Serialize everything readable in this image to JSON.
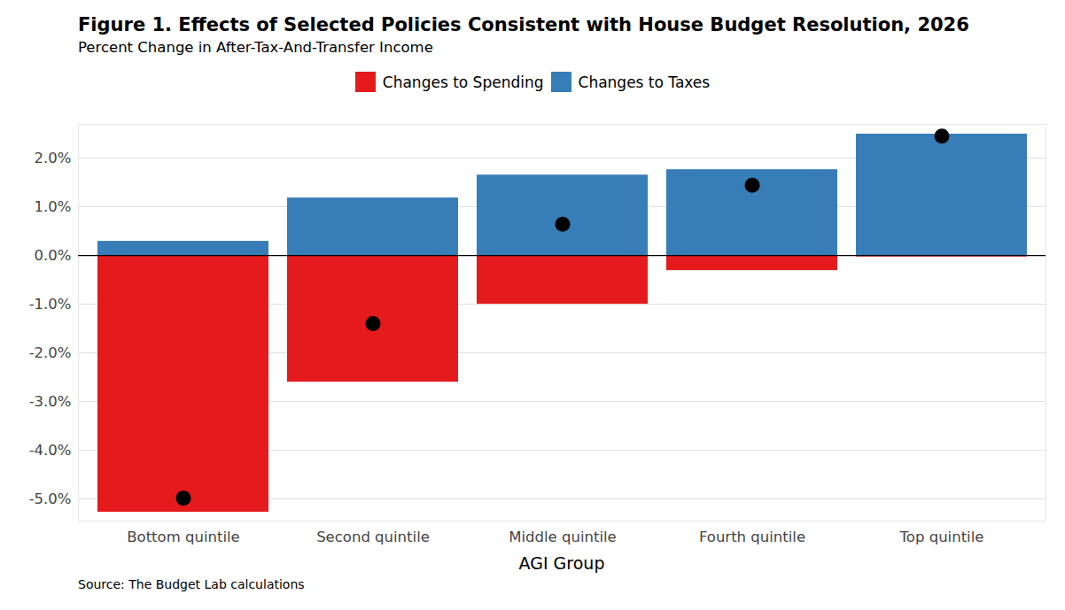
{
  "chart_data": {
    "type": "bar",
    "title": "Figure 1. Effects of Selected Policies Consistent with House Budget Resolution, 2026",
    "subtitle": "Percent Change in After-Tax-And-Transfer Income",
    "x_label": "AGI Group",
    "caption": "Source: The Budget Lab calculations",
    "categories": [
      "Bottom quintile",
      "Second quintile",
      "Middle quintile",
      "Fourth quintile",
      "Top quintile"
    ],
    "series": [
      {
        "name": "Changes to Spending",
        "color": "#e41a1c",
        "values": [
          -5.27,
          -2.6,
          -1.0,
          -0.31,
          -0.03
        ]
      },
      {
        "name": "Changes to Taxes",
        "color": "#377eb8",
        "values": [
          0.29,
          1.18,
          1.65,
          1.76,
          2.49
        ]
      },
      {
        "type": "dot",
        "color": "#000000",
        "values": [
          -4.98,
          -1.4,
          0.64,
          1.44,
          2.45
        ]
      }
    ],
    "stacked": true,
    "ylim": [
      -5.45,
      2.69
    ],
    "yticks": [
      {
        "value": -5,
        "label": "-5.0%"
      },
      {
        "value": -4,
        "label": "-4.0%"
      },
      {
        "value": -3,
        "label": "-3.0%"
      },
      {
        "value": -2,
        "label": "-2.0%"
      },
      {
        "value": -1,
        "label": "-1.0%"
      },
      {
        "value": 0,
        "label": "0.0%"
      },
      {
        "value": 1,
        "label": "1.0%"
      },
      {
        "value": 2,
        "label": "2.0%"
      }
    ],
    "grid": true,
    "legend": "top"
  }
}
